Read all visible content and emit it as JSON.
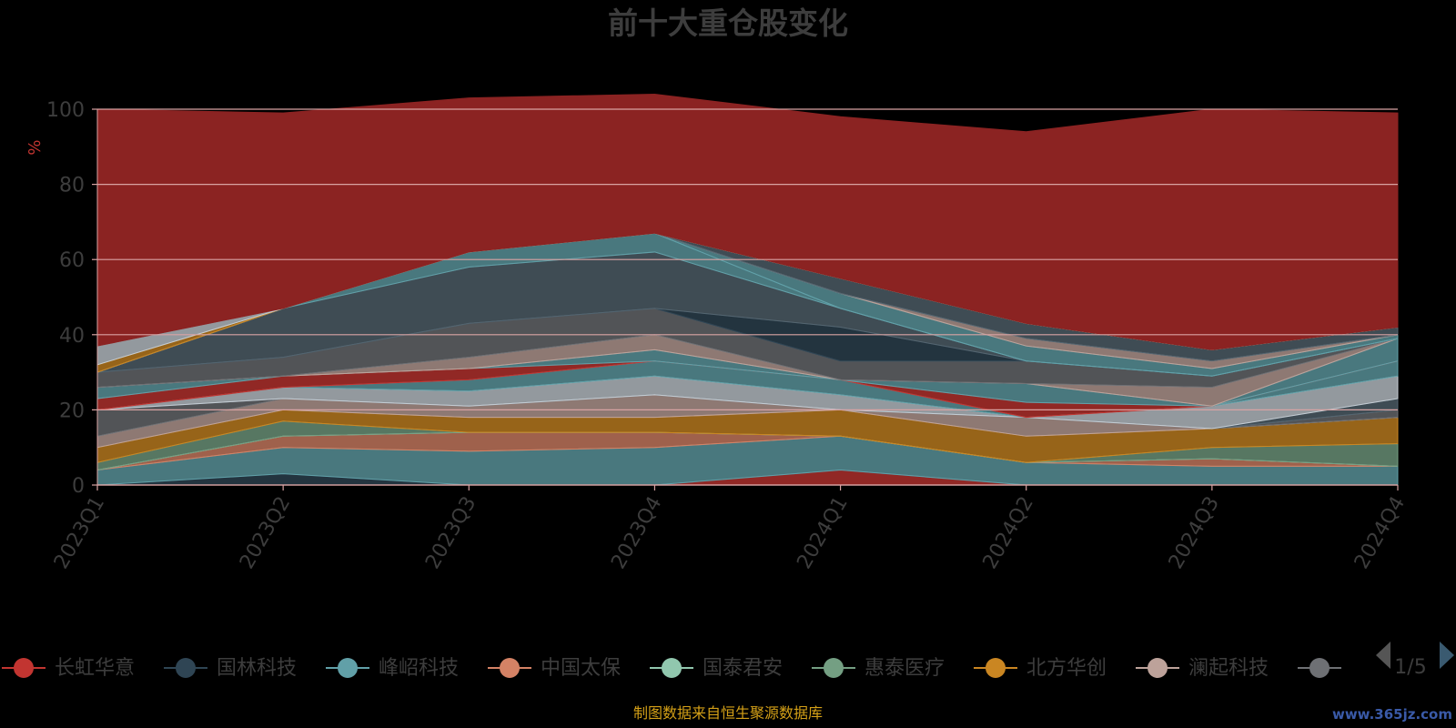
{
  "chart_data": {
    "type": "area",
    "stacked": true,
    "title": "前十大重仓股变化",
    "ylabel": "%",
    "ylim": [
      0,
      100
    ],
    "y_ticks": [
      "0",
      "20",
      "40",
      "60",
      "80",
      "100"
    ],
    "categories": [
      "2023Q1",
      "2023Q2",
      "2023Q3",
      "2023Q4",
      "2024Q1",
      "2024Q2",
      "2024Q3",
      "2024Q4"
    ],
    "grid": true,
    "series": [
      {
        "name": "长虹华意",
        "color": "#c23531",
        "values": [
          0,
          0,
          0,
          0,
          4,
          0,
          0,
          0
        ]
      },
      {
        "name": "国林科技",
        "color": "#2f4554",
        "values": [
          0,
          3,
          0,
          0,
          0,
          0,
          0,
          0
        ]
      },
      {
        "name": "峰岹科技",
        "color": "#61a0a8",
        "values": [
          4,
          7,
          9,
          10,
          9,
          6,
          5,
          5
        ]
      },
      {
        "name": "中国太保",
        "color": "#d48265",
        "values": [
          0,
          3,
          5,
          4,
          0,
          0,
          2,
          0
        ]
      },
      {
        "name": "国泰君安",
        "color": "#91c7ae",
        "values": [
          0,
          0,
          0,
          0,
          0,
          0,
          0,
          0
        ]
      },
      {
        "name": "惠泰医疗",
        "color": "#749f83",
        "values": [
          2,
          4,
          0,
          0,
          0,
          0,
          3,
          6
        ]
      },
      {
        "name": "北方华创",
        "color": "#ca8622",
        "values": [
          4,
          3,
          4,
          4,
          7,
          7,
          5,
          7
        ]
      },
      {
        "name": "澜起科技",
        "color": "#bda29a",
        "values": [
          3,
          3,
          3,
          6,
          0,
          5,
          0,
          0
        ]
      },
      {
        "name": "",
        "color": "#6e7074",
        "values": [
          7,
          0,
          0,
          0,
          0,
          0,
          0,
          2
        ]
      },
      {
        "name": "",
        "color": "#546570",
        "values": [
          0,
          0,
          0,
          0,
          0,
          0,
          0,
          3
        ]
      },
      {
        "name": "",
        "color": "#c4ccd3",
        "values": [
          0,
          3,
          4,
          5,
          4,
          0,
          6,
          6
        ]
      },
      {
        "name": "",
        "color": "#61a0a8",
        "values": [
          0,
          0,
          3,
          4,
          4,
          0,
          0,
          4
        ]
      },
      {
        "name": "",
        "color": "#c23531",
        "values": [
          3,
          3,
          3,
          0,
          0,
          4,
          0,
          0
        ]
      },
      {
        "name": "",
        "color": "#61a0a8",
        "values": [
          3,
          0,
          0,
          3,
          0,
          5,
          0,
          6
        ]
      },
      {
        "name": "",
        "color": "#bda29a",
        "values": [
          0,
          0,
          3,
          4,
          0,
          0,
          5,
          0
        ]
      },
      {
        "name": "",
        "color": "#6e7074",
        "values": [
          4,
          5,
          9,
          7,
          5,
          6,
          3,
          0
        ]
      },
      {
        "name": "",
        "color": "#2f4554",
        "values": [
          0,
          0,
          0,
          0,
          9,
          0,
          0,
          0
        ]
      },
      {
        "name": "",
        "color": "#546570",
        "values": [
          0,
          13,
          15,
          15,
          5,
          0,
          0,
          0
        ]
      },
      {
        "name": "",
        "color": "#61a0a8",
        "values": [
          0,
          0,
          4,
          5,
          0,
          0,
          0,
          0
        ]
      },
      {
        "name": "",
        "color": "#61a0a8",
        "values": [
          0,
          0,
          0,
          0,
          4,
          4,
          2,
          1
        ]
      },
      {
        "name": "",
        "color": "#bda29a",
        "values": [
          0,
          0,
          0,
          0,
          0,
          2,
          2,
          0
        ]
      },
      {
        "name": "",
        "color": "#546570",
        "values": [
          0,
          0,
          0,
          0,
          4,
          4,
          3,
          2
        ]
      },
      {
        "name": "",
        "color": "#ca8622",
        "values": [
          2,
          0,
          0,
          0,
          0,
          0,
          0,
          0
        ]
      },
      {
        "name": "",
        "color": "#c4ccd3",
        "values": [
          5,
          0,
          0,
          0,
          0,
          0,
          0,
          0
        ]
      },
      {
        "name": "",
        "color": "#8b2322",
        "values": [
          63,
          52,
          41,
          37,
          43,
          51,
          64,
          57
        ]
      }
    ]
  },
  "legend": {
    "page": "1/5",
    "prev_icon": "triangle-left-icon",
    "next_icon": "triangle-right-icon"
  },
  "source_note": "制图数据来自恒生聚源数据库",
  "watermark": "www.365jz.com",
  "colors": {
    "background": "#000000",
    "title": "#3d3d3d",
    "axis_text": "#3d3d3d",
    "ylabel": "#c23531",
    "grid": "#d9a3a3",
    "source_note": "#d4a017",
    "watermark": "#3a5aa8"
  }
}
